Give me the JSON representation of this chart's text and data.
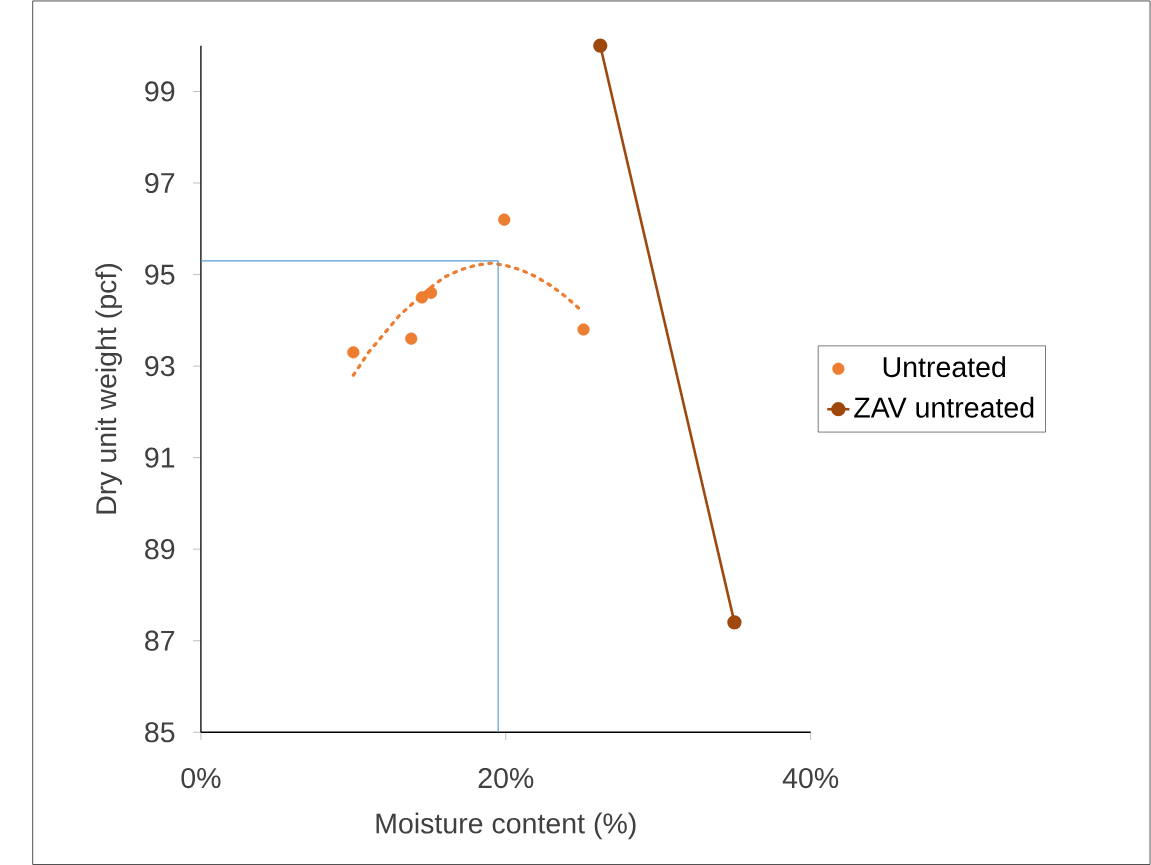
{
  "chart_data": {
    "type": "scatter",
    "xlabel": "Moisture content (%)",
    "ylabel": "Dry unit weight (pcf)",
    "xlim": [
      0,
      40
    ],
    "ylim": [
      85,
      100
    ],
    "xticks": [
      {
        "value": 0,
        "label": "0%"
      },
      {
        "value": 20,
        "label": "20%"
      },
      {
        "value": 40,
        "label": "40%"
      }
    ],
    "yticks": [
      85,
      87,
      89,
      91,
      93,
      95,
      97,
      99
    ],
    "legend": "right",
    "grid": false,
    "series": [
      {
        "name": "Untreated",
        "color": "#ed7d31",
        "marker": "circle",
        "x": [
          10.0,
          13.8,
          14.5,
          15.1,
          19.9,
          25.1
        ],
        "values": [
          93.3,
          93.6,
          94.5,
          94.6,
          96.2,
          93.8
        ]
      },
      {
        "type": "line",
        "color": "#ed7d31",
        "line_style": "dotted",
        "marker": "none",
        "x": [
          10,
          11,
          12,
          13,
          14,
          15,
          16,
          17,
          18,
          19,
          20,
          21,
          22,
          23,
          24,
          25
        ],
        "values": [
          92.8,
          93.3,
          93.7,
          94.1,
          94.4,
          94.7,
          94.95,
          95.1,
          95.2,
          95.25,
          95.2,
          95.1,
          94.95,
          94.75,
          94.5,
          94.2
        ]
      },
      {
        "name": "ZAV untreated",
        "type": "line",
        "color": "#9e480e",
        "line_style": "solid",
        "marker": "circle",
        "x": [
          26.2,
          35.0
        ],
        "values": [
          100,
          87.4
        ]
      },
      {
        "type": "line",
        "color": "#5b9bd5",
        "line_style": "solid",
        "marker": "none",
        "x": [
          0,
          19.5,
          19.5
        ],
        "values": [
          95.3,
          95.3,
          85
        ]
      }
    ]
  }
}
